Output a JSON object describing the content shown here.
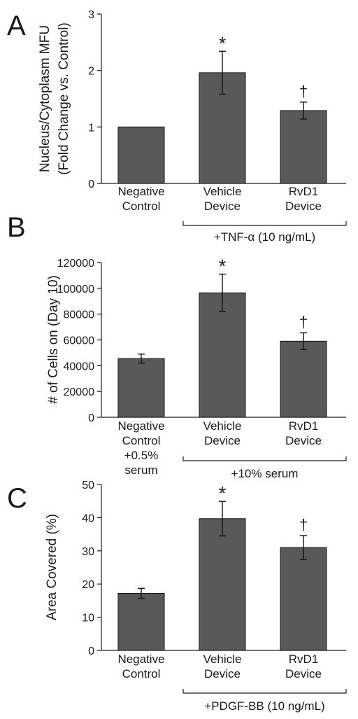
{
  "colors": {
    "bar": "#595959",
    "axis": "#1a1a1a"
  },
  "chart_data": [
    {
      "type": "bar",
      "panel": "A",
      "ylabel": [
        "Nucleus/Cytoplasm MFU",
        "(Fold Change vs. Control)"
      ],
      "ylim": [
        0,
        3
      ],
      "yticks": [
        "0",
        "1",
        "2",
        "3"
      ],
      "categories": [
        [
          "Negative",
          "Control"
        ],
        [
          "Vehicle",
          "Device"
        ],
        [
          "RvD1",
          "Device"
        ]
      ],
      "values": [
        1.0,
        1.96,
        1.29
      ],
      "errors": [
        0.0,
        0.38,
        0.15
      ],
      "markers": [
        "",
        "*",
        "†"
      ],
      "group_label": "+TNF-α (10 ng/mL)"
    },
    {
      "type": "bar",
      "panel": "B",
      "ylabel": [
        "# of Cells  on (Day 10)"
      ],
      "ylim": [
        0,
        120000
      ],
      "yticks": [
        "0",
        "20000",
        "40000",
        "60000",
        "80000",
        "100000",
        "120000"
      ],
      "categories": [
        [
          "Negative",
          "Control",
          "+0.5%",
          "serum"
        ],
        [
          "Vehicle",
          "Device"
        ],
        [
          "RvD1",
          "Device"
        ]
      ],
      "values": [
        45500,
        96500,
        59000
      ],
      "errors": [
        3500,
        14500,
        6500
      ],
      "markers": [
        "",
        "*",
        "†"
      ],
      "group_label": "+10% serum"
    },
    {
      "type": "bar",
      "panel": "C",
      "ylabel": [
        "Area Covered (%)"
      ],
      "ylim": [
        0,
        50
      ],
      "yticks": [
        "0",
        "10",
        "20",
        "30",
        "40",
        "50"
      ],
      "categories": [
        [
          "Negative",
          "Control"
        ],
        [
          "Vehicle",
          "Device"
        ],
        [
          "RvD1",
          "Device"
        ]
      ],
      "values": [
        17.2,
        39.7,
        31.0
      ],
      "errors": [
        1.5,
        5.2,
        3.6
      ],
      "markers": [
        "",
        "*",
        "†"
      ],
      "group_label": "+PDGF-BB (10 ng/mL)"
    }
  ]
}
